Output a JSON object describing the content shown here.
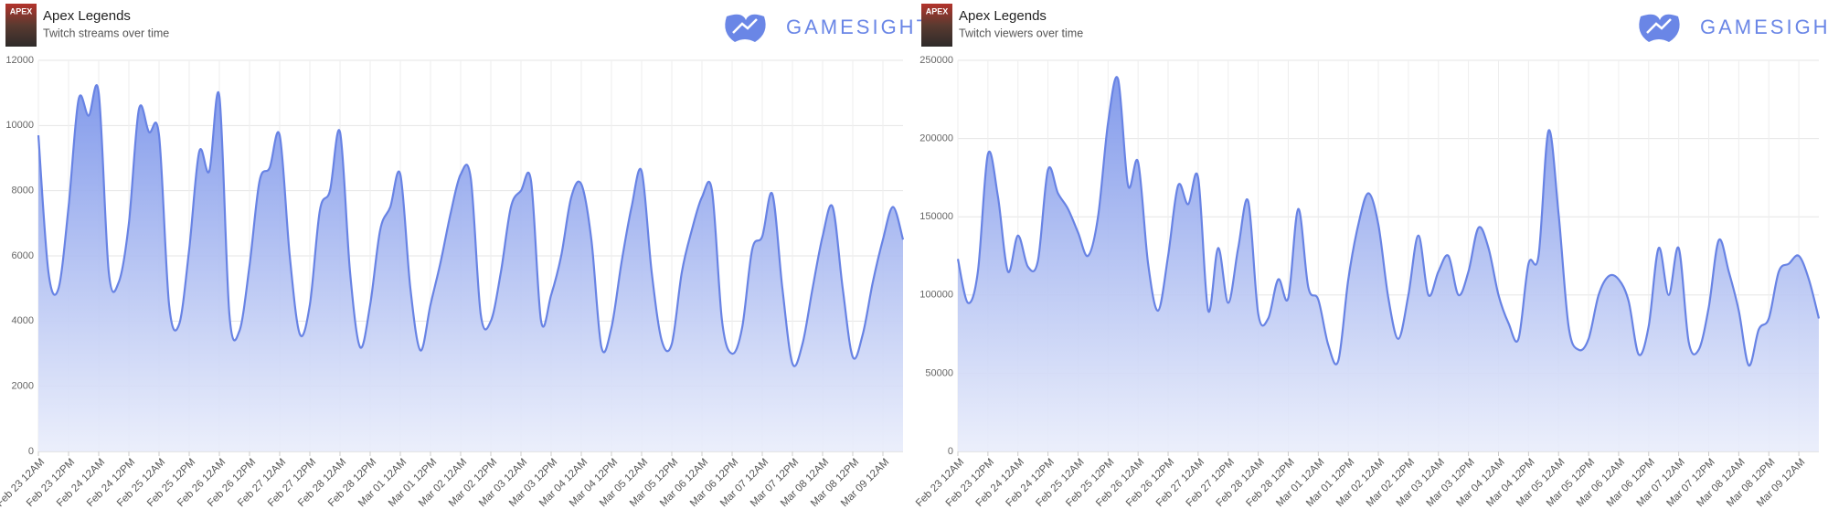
{
  "brand": "GAMESIGHT",
  "icon_text": "APEX",
  "chart_data": [
    {
      "type": "area",
      "title": "Apex Legends",
      "subtitle": "Twitch streams over time",
      "color": "#6883e4",
      "grid": true,
      "xlim": [
        0,
        344
      ],
      "xticks": [
        {
          "value": 0,
          "label": "Feb 23 12AM"
        },
        {
          "value": 12,
          "label": "Feb 23 12PM"
        },
        {
          "value": 24,
          "label": "Feb 24 12AM"
        },
        {
          "value": 36,
          "label": "Feb 24 12PM"
        },
        {
          "value": 48,
          "label": "Feb 25 12AM"
        },
        {
          "value": 60,
          "label": "Feb 25 12PM"
        },
        {
          "value": 72,
          "label": "Feb 26 12AM"
        },
        {
          "value": 84,
          "label": "Feb 26 12PM"
        },
        {
          "value": 96,
          "label": "Feb 27 12AM"
        },
        {
          "value": 108,
          "label": "Feb 27 12PM"
        },
        {
          "value": 120,
          "label": "Feb 28 12AM"
        },
        {
          "value": 132,
          "label": "Feb 28 12PM"
        },
        {
          "value": 144,
          "label": "Mar 01 12AM"
        },
        {
          "value": 156,
          "label": "Mar 01 12PM"
        },
        {
          "value": 168,
          "label": "Mar 02 12AM"
        },
        {
          "value": 180,
          "label": "Mar 02 12PM"
        },
        {
          "value": 192,
          "label": "Mar 03 12AM"
        },
        {
          "value": 204,
          "label": "Mar 03 12PM"
        },
        {
          "value": 216,
          "label": "Mar 04 12AM"
        },
        {
          "value": 228,
          "label": "Mar 04 12PM"
        },
        {
          "value": 240,
          "label": "Mar 05 12AM"
        },
        {
          "value": 252,
          "label": "Mar 05 12PM"
        },
        {
          "value": 264,
          "label": "Mar 06 12AM"
        },
        {
          "value": 276,
          "label": "Mar 06 12PM"
        },
        {
          "value": 288,
          "label": "Mar 07 12AM"
        },
        {
          "value": 300,
          "label": "Mar 07 12PM"
        },
        {
          "value": 312,
          "label": "Mar 08 12AM"
        },
        {
          "value": 324,
          "label": "Mar 08 12PM"
        },
        {
          "value": 336,
          "label": "Mar 09 12AM"
        }
      ],
      "ylim": [
        0,
        12000
      ],
      "yticks": [
        0,
        2000,
        4000,
        6000,
        8000,
        10000,
        12000
      ],
      "x": [
        0,
        4,
        8,
        12,
        16,
        20,
        24,
        28,
        32,
        36,
        40,
        44,
        48,
        52,
        56,
        60,
        64,
        68,
        72,
        76,
        80,
        84,
        88,
        92,
        96,
        100,
        104,
        108,
        112,
        116,
        120,
        124,
        128,
        132,
        136,
        140,
        144,
        148,
        152,
        156,
        160,
        164,
        168,
        172,
        176,
        180,
        184,
        188,
        192,
        196,
        200,
        204,
        208,
        212,
        216,
        220,
        224,
        228,
        232,
        236,
        240,
        244,
        248,
        252,
        256,
        260,
        264,
        268,
        272,
        276,
        280,
        284,
        288,
        292,
        296,
        300,
        304,
        308,
        312,
        316,
        320,
        324,
        328,
        332,
        336,
        340,
        344
      ],
      "values": [
        9700,
        5500,
        5000,
        7500,
        10800,
        10300,
        11000,
        5500,
        5200,
        7000,
        10500,
        9800,
        9700,
        4500,
        3900,
        6200,
        9200,
        8600,
        10900,
        4200,
        3700,
        5700,
        8300,
        8700,
        9700,
        6000,
        3600,
        4500,
        7400,
        8000,
        9800,
        5500,
        3200,
        4500,
        6800,
        7500,
        8500,
        5000,
        3100,
        4500,
        5800,
        7300,
        8500,
        8400,
        4200,
        4000,
        5500,
        7500,
        8000,
        8300,
        4000,
        4800,
        6000,
        7800,
        8200,
        6500,
        3200,
        3800,
        5800,
        7500,
        8600,
        5500,
        3400,
        3300,
        5500,
        6800,
        7800,
        8000,
        4000,
        3000,
        3800,
        6200,
        6600,
        7900,
        5000,
        2700,
        3300,
        5000,
        6600,
        7500,
        5000,
        2900,
        3600,
        5200,
        6500,
        7500,
        6500
      ]
    },
    {
      "type": "area",
      "title": "Apex Legends",
      "subtitle": "Twitch viewers over time",
      "color": "#6883e4",
      "grid": true,
      "xlim": [
        0,
        344
      ],
      "xticks": [
        {
          "value": 0,
          "label": "Feb 23 12AM"
        },
        {
          "value": 12,
          "label": "Feb 23 12PM"
        },
        {
          "value": 24,
          "label": "Feb 24 12AM"
        },
        {
          "value": 36,
          "label": "Feb 24 12PM"
        },
        {
          "value": 48,
          "label": "Feb 25 12AM"
        },
        {
          "value": 60,
          "label": "Feb 25 12PM"
        },
        {
          "value": 72,
          "label": "Feb 26 12AM"
        },
        {
          "value": 84,
          "label": "Feb 26 12PM"
        },
        {
          "value": 96,
          "label": "Feb 27 12AM"
        },
        {
          "value": 108,
          "label": "Feb 27 12PM"
        },
        {
          "value": 120,
          "label": "Feb 28 12AM"
        },
        {
          "value": 132,
          "label": "Feb 28 12PM"
        },
        {
          "value": 144,
          "label": "Mar 01 12AM"
        },
        {
          "value": 156,
          "label": "Mar 01 12PM"
        },
        {
          "value": 168,
          "label": "Mar 02 12AM"
        },
        {
          "value": 180,
          "label": "Mar 02 12PM"
        },
        {
          "value": 192,
          "label": "Mar 03 12AM"
        },
        {
          "value": 204,
          "label": "Mar 03 12PM"
        },
        {
          "value": 216,
          "label": "Mar 04 12AM"
        },
        {
          "value": 228,
          "label": "Mar 04 12PM"
        },
        {
          "value": 240,
          "label": "Mar 05 12AM"
        },
        {
          "value": 252,
          "label": "Mar 05 12PM"
        },
        {
          "value": 264,
          "label": "Mar 06 12AM"
        },
        {
          "value": 276,
          "label": "Mar 06 12PM"
        },
        {
          "value": 288,
          "label": "Mar 07 12AM"
        },
        {
          "value": 300,
          "label": "Mar 07 12PM"
        },
        {
          "value": 312,
          "label": "Mar 08 12AM"
        },
        {
          "value": 324,
          "label": "Mar 08 12PM"
        },
        {
          "value": 336,
          "label": "Mar 09 12AM"
        }
      ],
      "ylim": [
        0,
        250000
      ],
      "yticks": [
        0,
        50000,
        100000,
        150000,
        200000,
        250000
      ],
      "x": [
        0,
        4,
        8,
        12,
        16,
        20,
        24,
        28,
        32,
        36,
        40,
        44,
        48,
        52,
        56,
        60,
        64,
        68,
        72,
        76,
        80,
        84,
        88,
        92,
        96,
        100,
        104,
        108,
        112,
        116,
        120,
        124,
        128,
        132,
        136,
        140,
        144,
        148,
        152,
        156,
        160,
        164,
        168,
        172,
        176,
        180,
        184,
        188,
        192,
        196,
        200,
        204,
        208,
        212,
        216,
        220,
        224,
        228,
        232,
        236,
        240,
        244,
        248,
        252,
        256,
        260,
        264,
        268,
        272,
        276,
        280,
        284,
        288,
        292,
        296,
        300,
        304,
        308,
        312,
        316,
        320,
        324,
        328,
        332,
        336,
        340,
        344
      ],
      "values": [
        123000,
        95000,
        115000,
        190000,
        163000,
        115000,
        138000,
        118000,
        122000,
        180000,
        165000,
        155000,
        140000,
        125000,
        150000,
        210000,
        238000,
        170000,
        185000,
        120000,
        90000,
        125000,
        170000,
        158000,
        175000,
        90000,
        130000,
        95000,
        130000,
        160000,
        88000,
        85000,
        110000,
        98000,
        155000,
        105000,
        97000,
        68000,
        58000,
        110000,
        145000,
        165000,
        145000,
        98000,
        72000,
        100000,
        138000,
        100000,
        115000,
        125000,
        100000,
        115000,
        143000,
        130000,
        100000,
        82000,
        72000,
        120000,
        125000,
        205000,
        152000,
        80000,
        65000,
        72000,
        100000,
        112000,
        110000,
        96000,
        62000,
        80000,
        130000,
        100000,
        130000,
        70000,
        65000,
        92000,
        135000,
        115000,
        90000,
        55000,
        78000,
        85000,
        115000,
        120000,
        125000,
        110000,
        85000
      ]
    }
  ]
}
